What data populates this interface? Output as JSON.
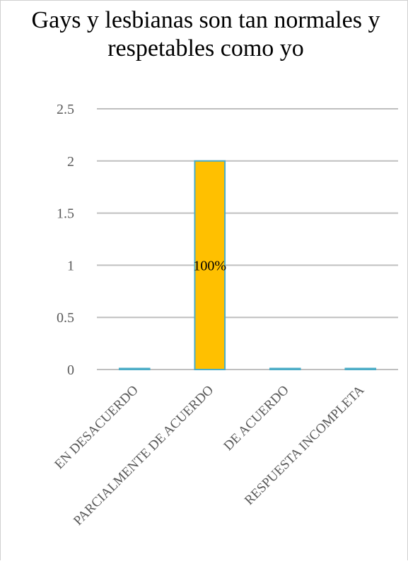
{
  "chart_data": {
    "type": "bar",
    "title": "Gays y lesbianas son tan normales y respetables como yo",
    "categories": [
      "EN DESACUERDO",
      "PARCIALMENTE DE ACUERDO",
      "DE ACUERDO",
      "RESPUESTA INCOMPLETA"
    ],
    "values": [
      0,
      2,
      0,
      0
    ],
    "data_labels": [
      "",
      "100%",
      "",
      ""
    ],
    "y_ticks": [
      "0",
      "0.5",
      "1",
      "1.5",
      "2",
      "2.5"
    ],
    "ylim": [
      0,
      2.5
    ],
    "grid": true,
    "xlabel": "",
    "ylabel": "",
    "colors": {
      "bar_fill": "#FFC000",
      "bar_stroke": "#4BACC6",
      "grid": "#bfbfbf"
    }
  }
}
